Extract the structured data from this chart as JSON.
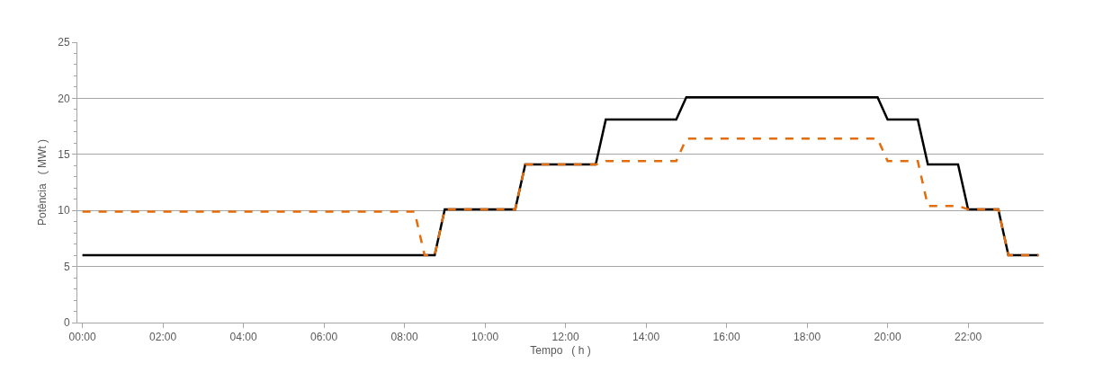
{
  "chart_data": {
    "type": "line",
    "xlabel": "Tempo   ( h )",
    "ylabel": "Potência   ( MWt )",
    "xlim": [
      -0.125,
      23.875
    ],
    "xticks": [
      {
        "value": 0,
        "label": "00:00"
      },
      {
        "value": 2,
        "label": "02:00"
      },
      {
        "value": 4,
        "label": "04:00"
      },
      {
        "value": 6,
        "label": "06:00"
      },
      {
        "value": 8,
        "label": "08:00"
      },
      {
        "value": 10,
        "label": "10:00"
      },
      {
        "value": 12,
        "label": "12:00"
      },
      {
        "value": 14,
        "label": "14:00"
      },
      {
        "value": 16,
        "label": "16:00"
      },
      {
        "value": 18,
        "label": "18:00"
      },
      {
        "value": 20,
        "label": "20:00"
      },
      {
        "value": 22,
        "label": "22:00"
      }
    ],
    "ylim": [
      0,
      25
    ],
    "yticks": [
      0,
      5,
      10,
      15,
      20,
      25
    ],
    "grid": "y",
    "marker": "none",
    "series": [
      {
        "color": "#000000",
        "line_style": "solid",
        "x": [
          0,
          8.75,
          9,
          10.75,
          11,
          12.75,
          13,
          14.75,
          15,
          19.75,
          20,
          20.75,
          21,
          21.75,
          22,
          22.75,
          23,
          23.75
        ],
        "values": [
          6.0,
          6.0,
          10.1,
          10.1,
          14.1,
          14.1,
          18.1,
          18.1,
          20.1,
          20.1,
          18.1,
          18.1,
          14.1,
          14.1,
          10.1,
          10.1,
          6.0,
          6.0
        ]
      },
      {
        "color": "#e46c0a",
        "line_style": "dashed",
        "x": [
          0,
          8.25,
          8.5,
          8.75,
          9,
          10.75,
          11,
          12.75,
          13,
          14.75,
          15,
          19.75,
          20,
          20.75,
          21,
          21.75,
          22,
          22.75,
          23,
          23.75
        ],
        "values": [
          9.9,
          9.9,
          6.0,
          6.0,
          10.1,
          10.1,
          14.1,
          14.1,
          14.4,
          14.4,
          16.4,
          16.4,
          14.4,
          14.4,
          10.4,
          10.4,
          10.1,
          10.1,
          6.0,
          6.0
        ]
      }
    ]
  }
}
